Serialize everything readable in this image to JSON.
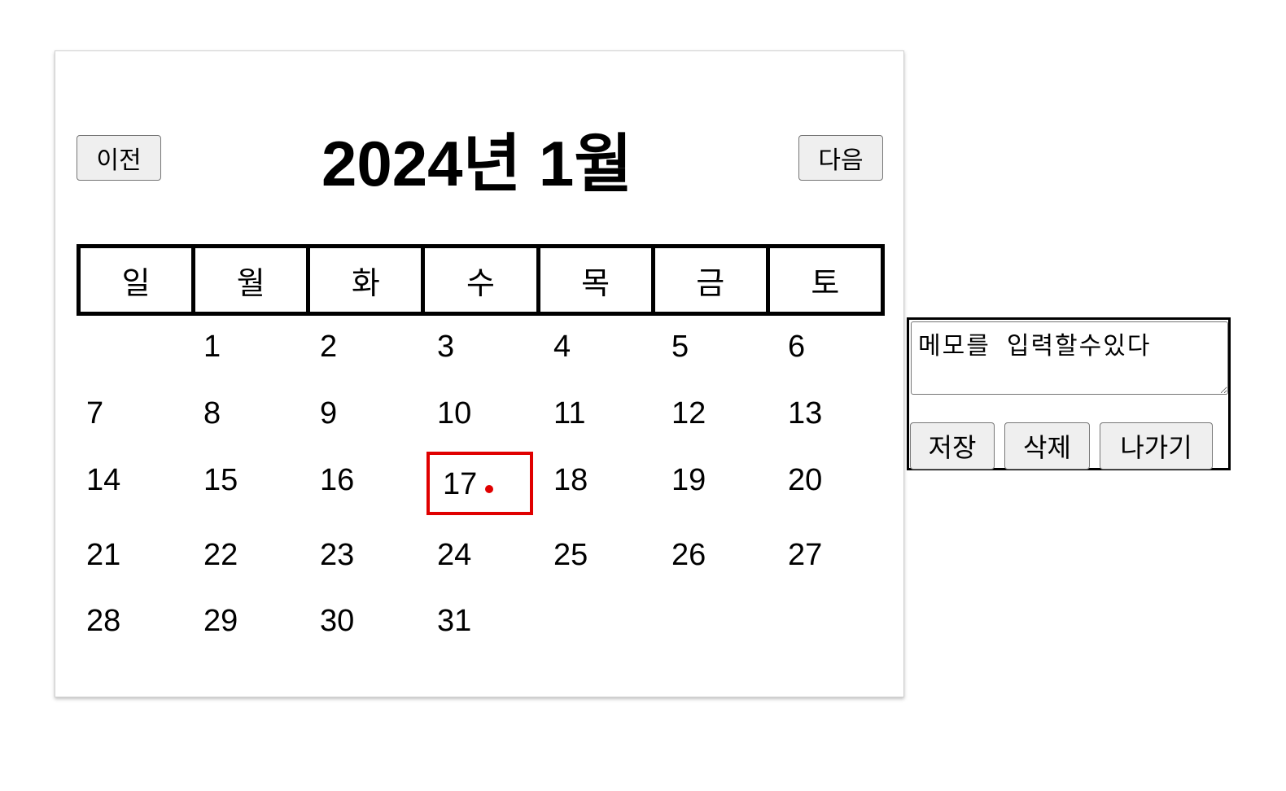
{
  "calendar": {
    "prev_label": "이전",
    "next_label": "다음",
    "title": "2024년 1월",
    "weekdays": [
      "일",
      "월",
      "화",
      "수",
      "목",
      "금",
      "토"
    ],
    "weeks": [
      [
        "",
        "1",
        "2",
        "3",
        "4",
        "5",
        "6"
      ],
      [
        "7",
        "8",
        "9",
        "10",
        "11",
        "12",
        "13"
      ],
      [
        "14",
        "15",
        "16",
        "17",
        "18",
        "19",
        "20"
      ],
      [
        "21",
        "22",
        "23",
        "24",
        "25",
        "26",
        "27"
      ],
      [
        "28",
        "29",
        "30",
        "31",
        "",
        "",
        ""
      ]
    ],
    "selected_day": "17",
    "days_with_memo": [
      "17"
    ],
    "marker_color": "#e00000"
  },
  "memo": {
    "text": "메모를 입력할수있다",
    "save_label": "저장",
    "delete_label": "삭제",
    "exit_label": "나가기"
  }
}
